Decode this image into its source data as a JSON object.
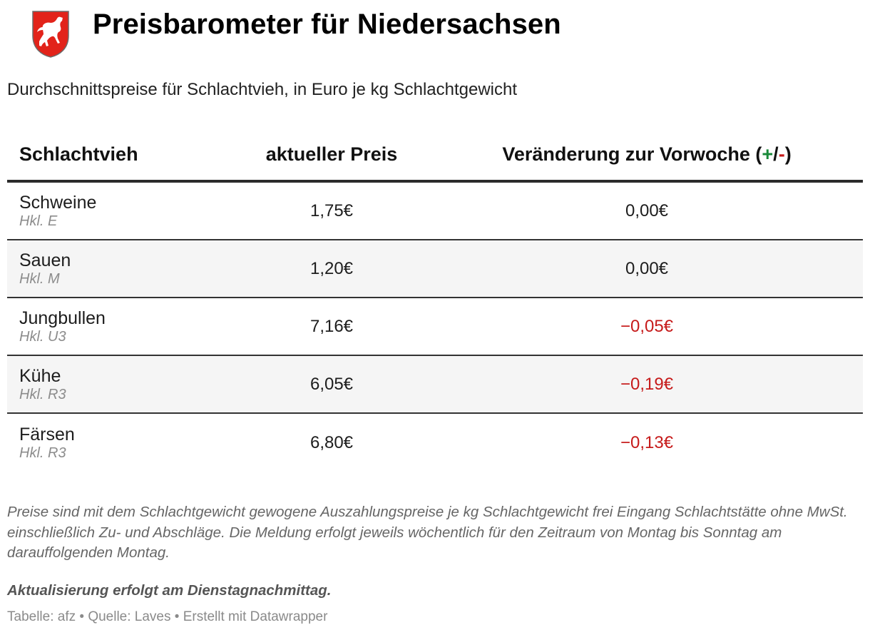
{
  "header": {
    "logo_icon": "lower-saxony-horse-crest-icon",
    "title": "Preisbarometer für Niedersachsen",
    "subtitle": "Durchschnittspreise für Schlachtvieh, in Euro je kg Schlachtgewicht"
  },
  "colors": {
    "positive": "#1a8a3a",
    "negative": "#c61a1a",
    "crest_red": "#e2231a"
  },
  "table": {
    "columns": {
      "animal": "Schlachtvieh",
      "price": "aktueller Preis",
      "change_prefix": "Veränderung zur Vorwoche (",
      "change_plus": "+",
      "change_sep": "/",
      "change_minus": "-",
      "change_suffix": ")"
    },
    "rows": [
      {
        "name": "Schweine",
        "grade": "Hkl. E",
        "price": "1,75€",
        "change": "0,00€"
      },
      {
        "name": "Sauen",
        "grade": "Hkl. M",
        "price": "1,20€",
        "change": "0,00€"
      },
      {
        "name": "Jungbullen",
        "grade": "Hkl. U3",
        "price": "7,16€",
        "change": "−0,05€"
      },
      {
        "name": "Kühe",
        "grade": "Hkl. R3",
        "price": "6,05€",
        "change": "−0,19€"
      },
      {
        "name": "Färsen",
        "grade": "Hkl. R3",
        "price": "6,80€",
        "change": "−0,13€"
      }
    ]
  },
  "notes": {
    "description": "Preise sind mit dem Schlachtgewicht gewogene Auszahlungspreise je kg Schlachtgewicht frei Eingang Schlachtstätte ohne MwSt. einschließlich Zu- und Abschläge. Die Meldung erfolgt jeweils wöchentlich für den Zeitraum von Montag bis Sonntag am darauffolgenden Montag.",
    "update": "Aktualisierung erfolgt am Dienstagnachmittag.",
    "footer": "Tabelle: afz • Quelle: Laves • Erstellt mit Datawrapper"
  }
}
